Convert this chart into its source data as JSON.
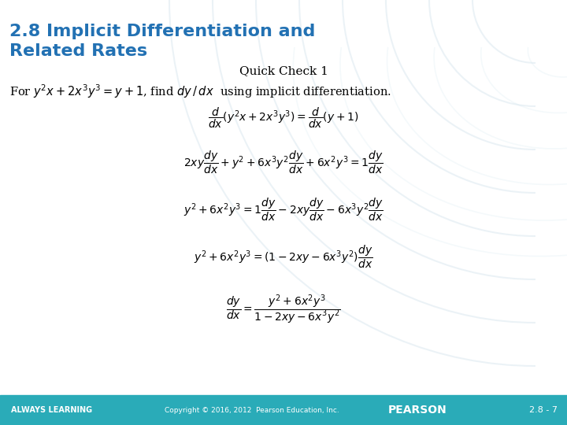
{
  "title_line1": "2.8 Implicit Differentiation and",
  "title_line2": "Related Rates",
  "subtitle": "Quick Check 1",
  "title_color": "#2271B3",
  "bg_color": "#FFFFFF",
  "footer_bg": "#2AABB8",
  "footer_text_left": "ALWAYS LEARNING",
  "footer_text_center": "Copyright © 2016, 2012  Pearson Education, Inc.",
  "footer_text_right": "PEARSON",
  "footer_text_page": "2.8 - 7",
  "footer_text_color": "#FFFFFF"
}
